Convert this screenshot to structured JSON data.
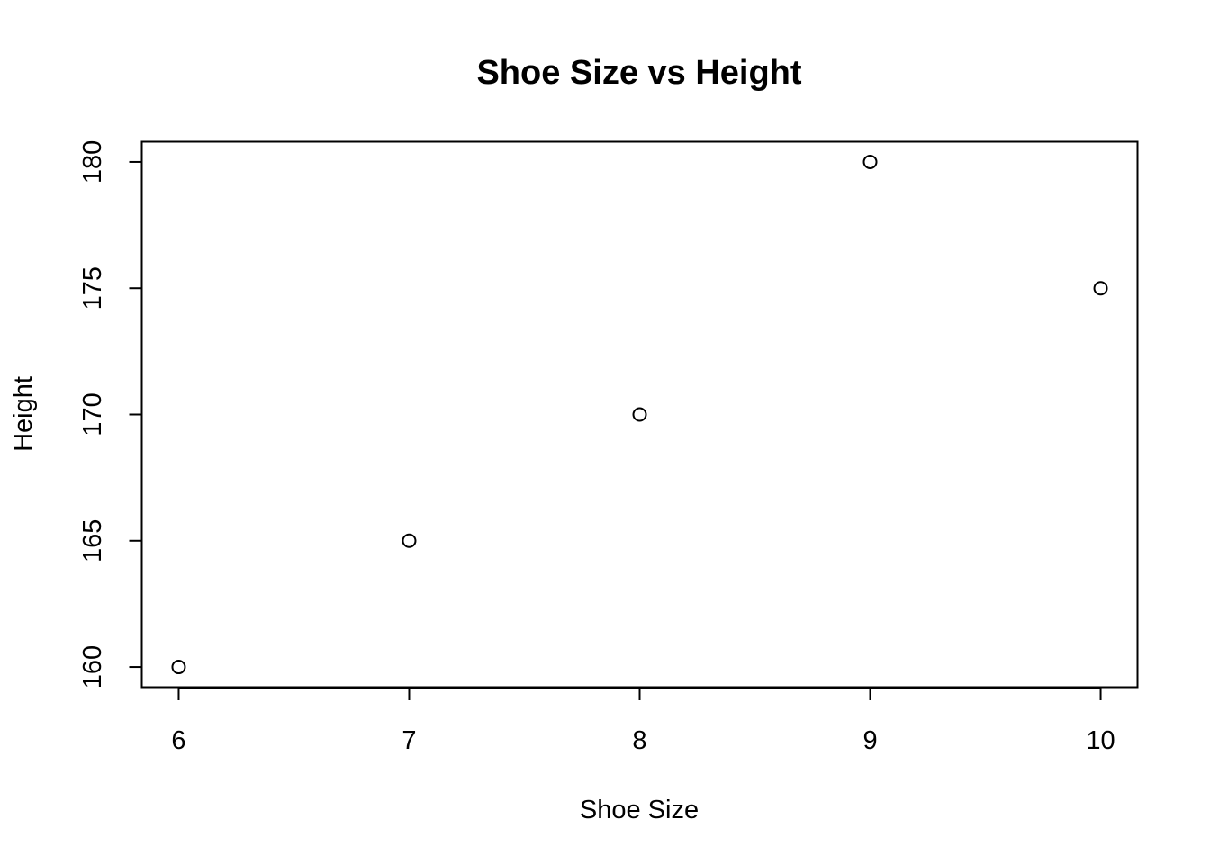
{
  "chart_data": {
    "type": "scatter",
    "title": "Shoe Size vs Height",
    "xlabel": "Shoe Size",
    "ylabel": "Height",
    "x": [
      6,
      7,
      8,
      9,
      10
    ],
    "y": [
      160,
      165,
      170,
      180,
      175
    ],
    "xlim": [
      5.84,
      10.16
    ],
    "ylim": [
      159.2,
      180.8
    ],
    "xticks": [
      6,
      7,
      8,
      9,
      10
    ],
    "yticks": [
      160,
      165,
      170,
      175,
      180
    ],
    "xtick_labels": [
      "6",
      "7",
      "8",
      "9",
      "10"
    ],
    "ytick_labels": [
      "160",
      "165",
      "170",
      "175",
      "180"
    ],
    "marker": "open-circle",
    "grid": false,
    "legend": "none",
    "colors": {
      "background": "#ffffff",
      "foreground": "#000000"
    }
  }
}
